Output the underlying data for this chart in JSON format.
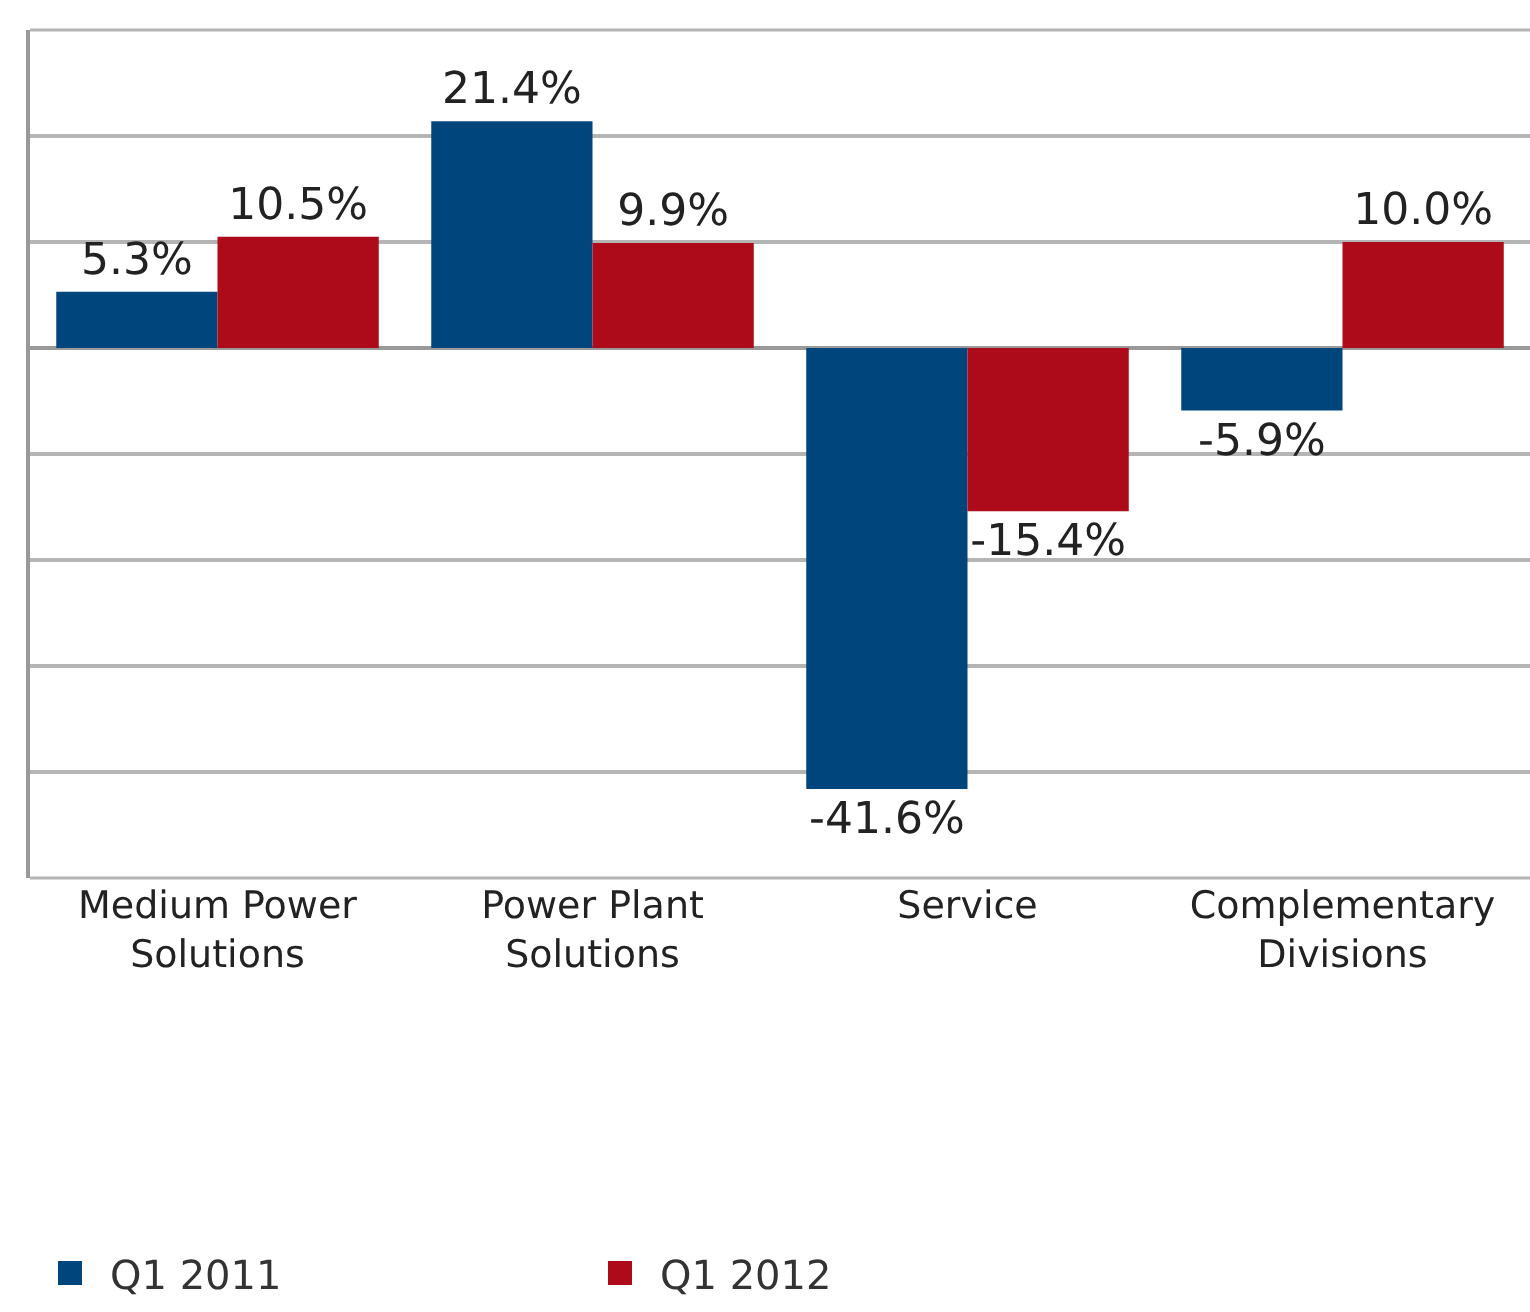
{
  "chart_data": {
    "type": "bar",
    "categories": [
      "Medium Power Solutions",
      "Power Plant Solutions",
      "Service",
      "Complementary Divisions"
    ],
    "series": [
      {
        "name": "Q1 2011",
        "color": "#00457c",
        "values": [
          5.3,
          21.4,
          -41.6,
          -5.9
        ],
        "value_labels": [
          "5.3%",
          "21.4%",
          "-41.6%",
          "-5.9%"
        ]
      },
      {
        "name": "Q1 2012",
        "color": "#ad0a1a",
        "values": [
          10.5,
          9.9,
          -15.4,
          10.0
        ],
        "value_labels": [
          "10.5%",
          "9.9%",
          "-15.4%",
          "10.0%"
        ]
      }
    ],
    "ylim": [
      -50,
      30
    ],
    "yticks": [
      {
        "value": -40,
        "label": null
      },
      {
        "value": -30,
        "label": null
      },
      {
        "value": -20,
        "label": null
      },
      {
        "value": -10,
        "label": null
      },
      {
        "value": 0,
        "label": null
      },
      {
        "value": 10,
        "label": null
      },
      {
        "value": 20,
        "label": null
      }
    ],
    "tick_labels": "x",
    "grid": "y",
    "legend": "bottom left"
  }
}
